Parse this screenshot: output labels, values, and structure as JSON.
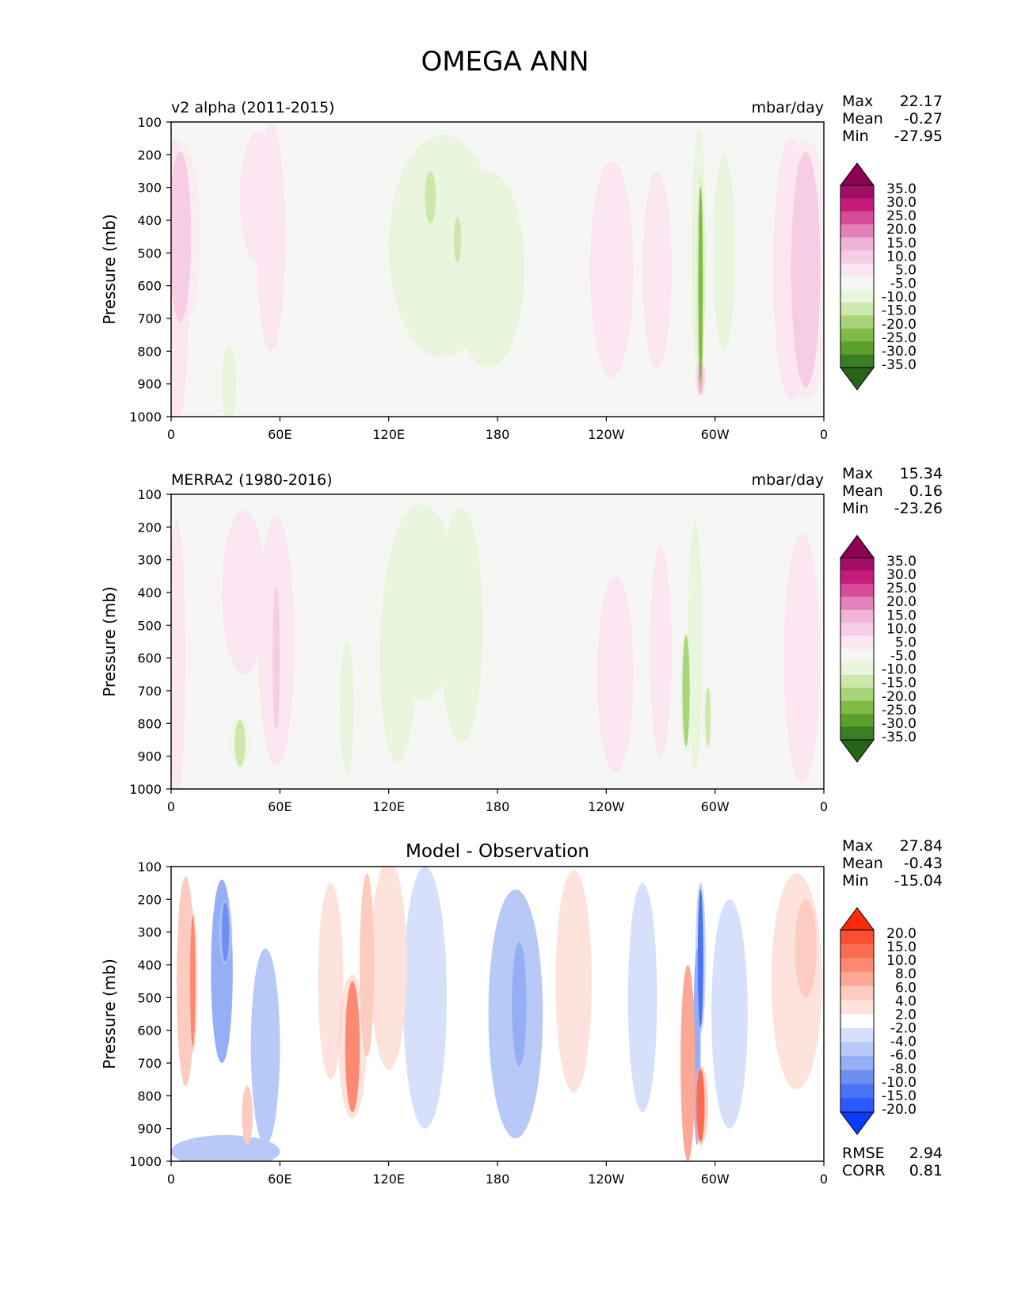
{
  "figure": {
    "title": "OMEGA ANN",
    "tick_font": "DejaVu Sans"
  },
  "colors": {
    "test_levels": [
      "#276419",
      "#4d9221",
      "#7fbc41",
      "#b8e186",
      "#d1eca2",
      "#e6f5d0",
      "#f7f7f7",
      "#fde0ef",
      "#f1b6da",
      "#de77ae",
      "#c51b7d",
      "#8e0152"
    ],
    "diff_levels": [
      "#053061",
      "#2166ac",
      "#4393c3",
      "#92c5de",
      "#d1e5f0",
      "#f7f7f7",
      "#fddbc7",
      "#f4a582",
      "#d6604d",
      "#b2182b",
      "#67001f"
    ],
    "test_palette": [
      "#276419",
      "#3a7d22",
      "#5c9f2e",
      "#80bb45",
      "#a9d47a",
      "#cde8ad",
      "#e9f5dc",
      "#f6f6f4",
      "#fbe6f1",
      "#f6cde5",
      "#efb3d7",
      "#e481b8",
      "#d74c98",
      "#c51b7d",
      "#a10e66",
      "#8e0152"
    ],
    "diff_palette": [
      "#0a3bff",
      "#2b59ff",
      "#4a72f4",
      "#6d8ff2",
      "#95aef5",
      "#b8c8f7",
      "#d7e0fa",
      "#ffffff",
      "#fde3dc",
      "#fdccc0",
      "#fca896",
      "#fc8a72",
      "#fb6b52",
      "#fb4f33",
      "#ff2a0a"
    ]
  },
  "chart_data": [
    {
      "type": "contour",
      "panel": "test",
      "title_left": "v2 alpha (2011-2015)",
      "title_center": "",
      "units": "mbar/day",
      "ylabel": "Pressure (mb)",
      "yticks": [
        "100",
        "200",
        "300",
        "400",
        "500",
        "600",
        "700",
        "800",
        "900",
        "1000"
      ],
      "xticks": [
        "0",
        "60E",
        "120E",
        "180",
        "120W",
        "60W",
        "0"
      ],
      "xlim": [
        0,
        360
      ],
      "ylim": [
        1000,
        100
      ],
      "stats": {
        "max_label": "Max",
        "max": "22.17",
        "mean_label": "Mean",
        "mean": "-0.27",
        "min_label": "Min",
        "min": "-27.95"
      },
      "colorbar_levels": [
        "35.0",
        "30.0",
        "25.0",
        "20.0",
        "15.0",
        "10.0",
        "5.0",
        "-5.0",
        "-10.0",
        "-15.0",
        "-20.0",
        "-25.0",
        "-30.0",
        "-35.0"
      ],
      "features": [
        {
          "lon": 5,
          "p": 450,
          "value": 14,
          "w": 6,
          "h": 260
        },
        {
          "lon": 2,
          "p": 600,
          "value": 9,
          "w": 8,
          "h": 450
        },
        {
          "lon": 48,
          "p": 330,
          "value": 7,
          "w": 10,
          "h": 200
        },
        {
          "lon": 55,
          "p": 450,
          "value": 6,
          "w": 8,
          "h": 350
        },
        {
          "lon": 32,
          "p": 900,
          "value": -8,
          "w": 4,
          "h": 120
        },
        {
          "lon": 150,
          "p": 480,
          "value": -8,
          "w": 30,
          "h": 340
        },
        {
          "lon": 143,
          "p": 330,
          "value": -14,
          "w": 3,
          "h": 80
        },
        {
          "lon": 158,
          "p": 460,
          "value": -14,
          "w": 2,
          "h": 70
        },
        {
          "lon": 175,
          "p": 550,
          "value": -7,
          "w": 20,
          "h": 300
        },
        {
          "lon": 243,
          "p": 550,
          "value": 8,
          "w": 12,
          "h": 330
        },
        {
          "lon": 268,
          "p": 550,
          "value": 7,
          "w": 8,
          "h": 300
        },
        {
          "lon": 291,
          "p": 500,
          "value": -8,
          "w": 4,
          "h": 380
        },
        {
          "lon": 292,
          "p": 600,
          "value": -22,
          "w": 1.2,
          "h": 300
        },
        {
          "lon": 292,
          "p": 880,
          "value": 20,
          "w": 1.5,
          "h": 50
        },
        {
          "lon": 305,
          "p": 500,
          "value": -7,
          "w": 6,
          "h": 300
        },
        {
          "lon": 350,
          "p": 550,
          "value": 12,
          "w": 8,
          "h": 360
        },
        {
          "lon": 342,
          "p": 550,
          "value": 7,
          "w": 10,
          "h": 400
        }
      ]
    },
    {
      "type": "contour",
      "panel": "ref",
      "title_left": "MERRA2 (1980-2016)",
      "title_center": "",
      "units": "mbar/day",
      "ylabel": "Pressure (mb)",
      "yticks": [
        "100",
        "200",
        "300",
        "400",
        "500",
        "600",
        "700",
        "800",
        "900",
        "1000"
      ],
      "xticks": [
        "0",
        "60E",
        "120E",
        "180",
        "120W",
        "60W",
        "0"
      ],
      "xlim": [
        0,
        360
      ],
      "ylim": [
        1000,
        100
      ],
      "stats": {
        "max_label": "Max",
        "max": "15.34",
        "mean_label": "Mean",
        "mean": "0.16",
        "min_label": "Min",
        "min": "-23.26"
      },
      "colorbar_levels": [
        "35.0",
        "30.0",
        "25.0",
        "20.0",
        "15.0",
        "10.0",
        "5.0",
        "-5.0",
        "-10.0",
        "-15.0",
        "-20.0",
        "-25.0",
        "-30.0",
        "-35.0"
      ],
      "features": [
        {
          "lon": 3,
          "p": 600,
          "value": 9,
          "w": 5,
          "h": 420
        },
        {
          "lon": 40,
          "p": 400,
          "value": 7,
          "w": 12,
          "h": 250
        },
        {
          "lon": 58,
          "p": 550,
          "value": 7,
          "w": 10,
          "h": 380
        },
        {
          "lon": 58,
          "p": 600,
          "value": 11,
          "w": 2,
          "h": 220
        },
        {
          "lon": 38,
          "p": 860,
          "value": -10,
          "w": 3,
          "h": 70
        },
        {
          "lon": 97,
          "p": 750,
          "value": -9,
          "w": 4,
          "h": 200
        },
        {
          "lon": 138,
          "p": 430,
          "value": -8,
          "w": 20,
          "h": 300
        },
        {
          "lon": 160,
          "p": 500,
          "value": -6,
          "w": 12,
          "h": 360
        },
        {
          "lon": 125,
          "p": 600,
          "value": -5,
          "w": 10,
          "h": 320
        },
        {
          "lon": 245,
          "p": 650,
          "value": 6,
          "w": 10,
          "h": 300
        },
        {
          "lon": 270,
          "p": 580,
          "value": 7,
          "w": 6,
          "h": 320
        },
        {
          "lon": 284,
          "p": 700,
          "value": -15,
          "w": 2,
          "h": 170
        },
        {
          "lon": 289,
          "p": 560,
          "value": -8,
          "w": 4,
          "h": 380
        },
        {
          "lon": 296,
          "p": 780,
          "value": -10,
          "w": 1.5,
          "h": 90
        },
        {
          "lon": 348,
          "p": 600,
          "value": 8,
          "w": 10,
          "h": 380
        }
      ]
    },
    {
      "type": "contour",
      "panel": "diff",
      "title_left": "",
      "title_center": "Model - Observation",
      "units": "",
      "ylabel": "Pressure (mb)",
      "yticks": [
        "100",
        "200",
        "300",
        "400",
        "500",
        "600",
        "700",
        "800",
        "900",
        "1000"
      ],
      "xticks": [
        "0",
        "60E",
        "120E",
        "180",
        "120W",
        "60W",
        "0"
      ],
      "xlim": [
        0,
        360
      ],
      "ylim": [
        1000,
        100
      ],
      "stats": {
        "max_label": "Max",
        "max": "27.84",
        "mean_label": "Mean",
        "mean": "-0.43",
        "min_label": "Min",
        "min": "-15.04"
      },
      "extra_stats": {
        "rmse_label": "RMSE",
        "rmse": "2.94",
        "corr_label": "CORR",
        "corr": "0.81"
      },
      "colorbar_levels": [
        "20.0",
        "15.0",
        "10.0",
        "8.0",
        "6.0",
        "4.0",
        "2.0",
        "-2.0",
        "-4.0",
        "-6.0",
        "-8.0",
        "-10.0",
        "-15.0",
        "-20.0"
      ],
      "features": [
        {
          "lon": 8,
          "p": 450,
          "value": 6,
          "w": 5,
          "h": 320
        },
        {
          "lon": 12,
          "p": 450,
          "value": 9,
          "w": 1.5,
          "h": 200
        },
        {
          "lon": 28,
          "p": 420,
          "value": -6,
          "w": 6,
          "h": 280
        },
        {
          "lon": 30,
          "p": 300,
          "value": -9,
          "w": 2,
          "h": 90
        },
        {
          "lon": 42,
          "p": 860,
          "value": 5,
          "w": 3,
          "h": 90
        },
        {
          "lon": 52,
          "p": 650,
          "value": -5,
          "w": 8,
          "h": 300
        },
        {
          "lon": 88,
          "p": 450,
          "value": 4,
          "w": 7,
          "h": 300
        },
        {
          "lon": 100,
          "p": 650,
          "value": 9,
          "w": 4,
          "h": 200
        },
        {
          "lon": 108,
          "p": 400,
          "value": 5,
          "w": 4,
          "h": 280
        },
        {
          "lon": 120,
          "p": 400,
          "value": 3.5,
          "w": 10,
          "h": 320
        },
        {
          "lon": 140,
          "p": 500,
          "value": -3,
          "w": 12,
          "h": 400
        },
        {
          "lon": 190,
          "p": 550,
          "value": -4,
          "w": 15,
          "h": 380
        },
        {
          "lon": 192,
          "p": 520,
          "value": -7,
          "w": 4,
          "h": 190
        },
        {
          "lon": 222,
          "p": 450,
          "value": 3,
          "w": 10,
          "h": 340
        },
        {
          "lon": 260,
          "p": 500,
          "value": -3,
          "w": 8,
          "h": 350
        },
        {
          "lon": 285,
          "p": 700,
          "value": 7,
          "w": 4,
          "h": 300
        },
        {
          "lon": 292,
          "p": 830,
          "value": 11,
          "w": 2.2,
          "h": 110
        },
        {
          "lon": 292,
          "p": 380,
          "value": -12,
          "w": 1.5,
          "h": 210
        },
        {
          "lon": 290,
          "p": 650,
          "value": -6,
          "w": 2,
          "h": 300
        },
        {
          "lon": 308,
          "p": 550,
          "value": -3.5,
          "w": 10,
          "h": 350
        },
        {
          "lon": 345,
          "p": 450,
          "value": 4,
          "w": 14,
          "h": 330
        },
        {
          "lon": 350,
          "p": 350,
          "value": 5.5,
          "w": 6,
          "h": 150
        },
        {
          "lon": 30,
          "p": 970,
          "value": -4,
          "w": 30,
          "h": 50
        }
      ]
    }
  ]
}
